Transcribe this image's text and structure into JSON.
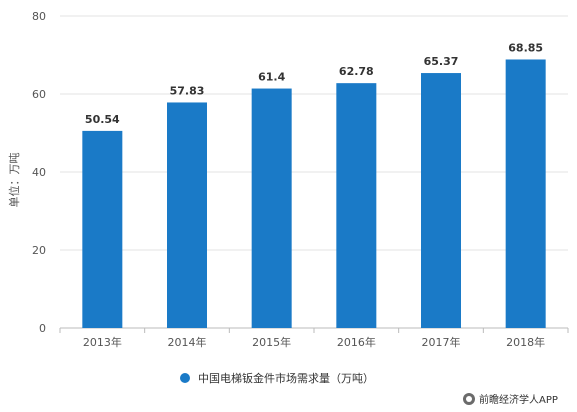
{
  "colors": {
    "bar": "#1a7ac7",
    "grid": "#e3e3e3",
    "axis": "#bbbbbb"
  },
  "chart_data": {
    "type": "bar",
    "categories": [
      "2013年",
      "2014年",
      "2015年",
      "2016年",
      "2017年",
      "2018年"
    ],
    "series": [
      {
        "name": "中国电梯钣金件市场需求量（万吨）",
        "values": [
          50.54,
          57.83,
          61.4,
          62.78,
          65.37,
          68.85
        ]
      }
    ],
    "data_labels": [
      "50.54",
      "57.83",
      "61.4",
      "62.78",
      "65.37",
      "68.85"
    ],
    "ylabel": "单位：万吨",
    "ylim": [
      0,
      80
    ],
    "yticks": [
      0,
      20,
      40,
      60,
      80
    ],
    "grid": true,
    "legend_position": "bottom"
  },
  "legend": {
    "label": "中国电梯钣金件市场需求量（万吨）"
  },
  "credit": {
    "text": "前瞻经济学人APP",
    "icon": "logo-icon"
  }
}
